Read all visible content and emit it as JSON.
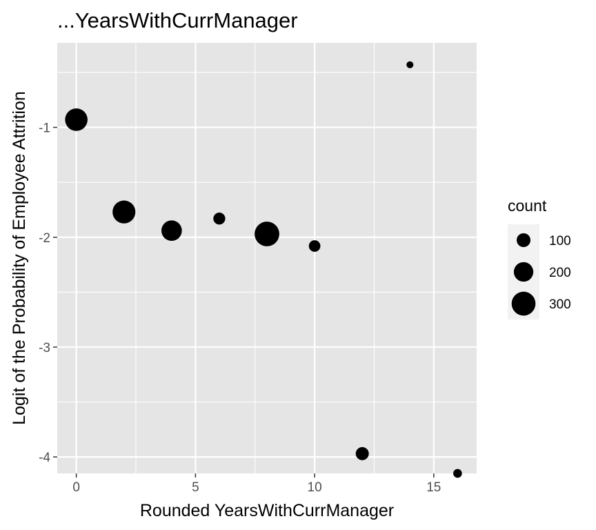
{
  "chart_data": {
    "type": "scatter",
    "title": "...YearsWithCurrManager",
    "xlabel": "Rounded YearsWithCurrManager",
    "ylabel": "Logit of the Probability of Employee Attrition",
    "xlim": [
      -0.8,
      16.8
    ],
    "ylim": [
      -4.15,
      -0.23
    ],
    "xticks": [
      0,
      5,
      10,
      15
    ],
    "xtick_labels": [
      "0",
      "5",
      "10",
      "15"
    ],
    "yticks": [
      -1,
      -2,
      -3,
      -4
    ],
    "ytick_labels": [
      "-1",
      "-2",
      "-3",
      "-4"
    ],
    "grid": true,
    "points": [
      {
        "x": 0,
        "y": -0.93,
        "count": 265
      },
      {
        "x": 2,
        "y": -1.77,
        "count": 275
      },
      {
        "x": 4,
        "y": -1.94,
        "count": 220
      },
      {
        "x": 6,
        "y": -1.83,
        "count": 75
      },
      {
        "x": 8,
        "y": -1.97,
        "count": 320
      },
      {
        "x": 10,
        "y": -2.08,
        "count": 70
      },
      {
        "x": 12,
        "y": -3.97,
        "count": 90
      },
      {
        "x": 14,
        "y": -0.43,
        "count": 25
      },
      {
        "x": 16,
        "y": -4.15,
        "count": 40
      }
    ],
    "legend": {
      "title": "count",
      "position": "right",
      "entries": [
        {
          "label": "100",
          "value": 100
        },
        {
          "label": "200",
          "value": 200
        },
        {
          "label": "300",
          "value": 300
        }
      ]
    },
    "colors": {
      "panel": "#e5e5e5",
      "grid_major": "#ffffff",
      "point": "#000000",
      "tick": "#4d4d4d"
    }
  }
}
